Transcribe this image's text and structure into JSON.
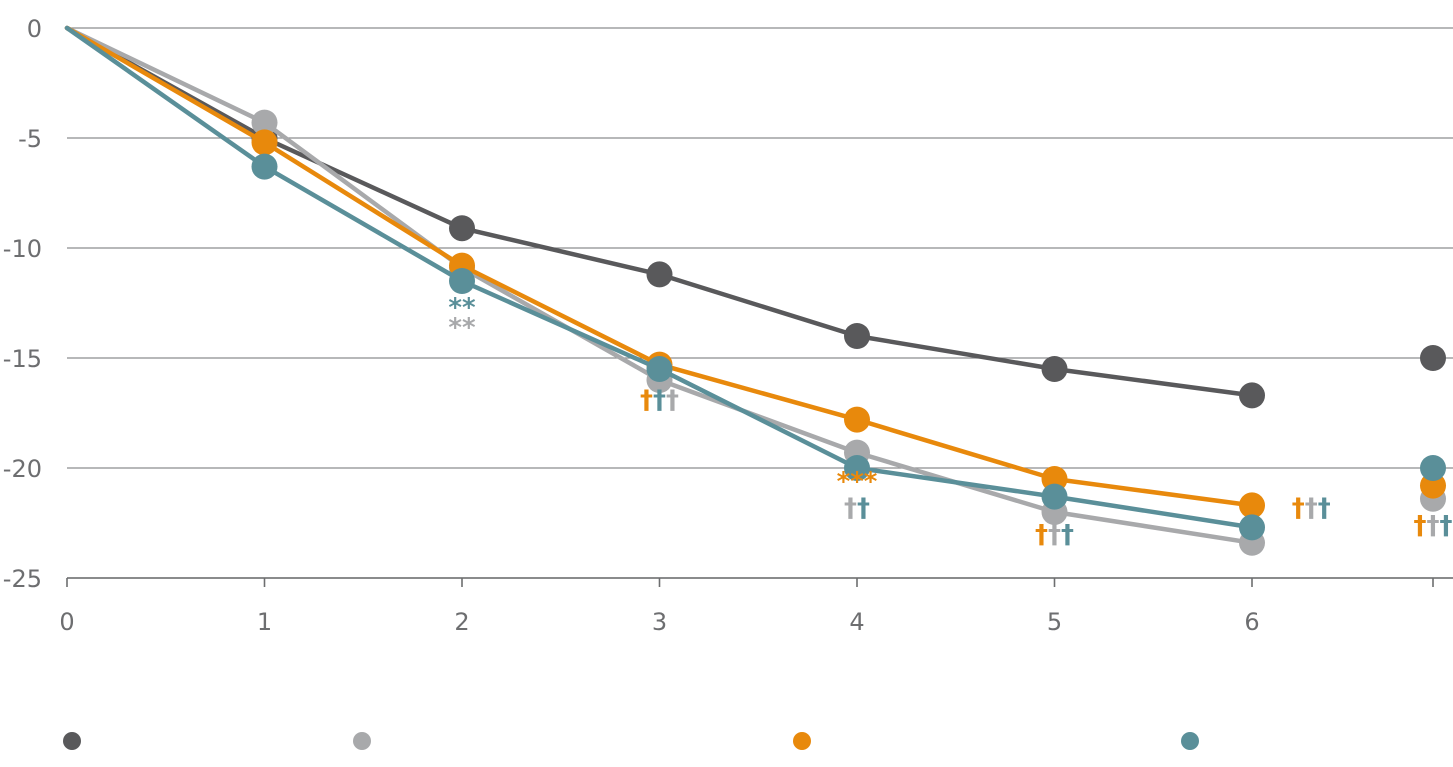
{
  "chart_data": {
    "type": "line",
    "x": [
      0,
      1,
      2,
      3,
      4,
      5,
      6
    ],
    "xticks": [
      "0",
      "1",
      "2",
      "3",
      "4",
      "5",
      "6"
    ],
    "ylim": [
      -25,
      0
    ],
    "yticks": [
      "0",
      "-5",
      "-10",
      "-15",
      "-20",
      "-25"
    ],
    "grid": true,
    "legend_position": "bottom",
    "series": [
      {
        "color": "#59595b",
        "values": [
          0,
          -5.0,
          -9.1,
          -11.2,
          -14.0,
          -15.5,
          -16.7
        ],
        "end_value": -15.0
      },
      {
        "color": "#a8a9ab",
        "values": [
          0,
          -4.3,
          -10.9,
          -16.0,
          -19.3,
          -22.0,
          -23.4
        ],
        "end_value": -21.4
      },
      {
        "color": "#e8890c",
        "values": [
          0,
          -5.2,
          -10.8,
          -15.3,
          -17.8,
          -20.5,
          -21.7
        ],
        "end_value": -20.8
      },
      {
        "color": "#5a8f99",
        "values": [
          0,
          -6.3,
          -11.5,
          -15.5,
          -20.0,
          -21.3,
          -22.7
        ],
        "end_value": -20.0
      }
    ],
    "annotations": [
      {
        "x": 2,
        "y": -13.1,
        "parts": [
          {
            "text": "**",
            "color": "#5a8f99"
          }
        ]
      },
      {
        "x": 2,
        "y": -14.0,
        "parts": [
          {
            "text": "**",
            "color": "#a8a9ab"
          }
        ]
      },
      {
        "x": 3,
        "y": -17.3,
        "parts": [
          {
            "text": "†",
            "color": "#e8890c"
          },
          {
            "text": "†",
            "color": "#5a8f99"
          },
          {
            "text": "†",
            "color": "#a8a9ab"
          }
        ]
      },
      {
        "x": 4,
        "y": -21.0,
        "parts": [
          {
            "text": "***",
            "color": "#e8890c"
          }
        ]
      },
      {
        "x": 4,
        "y": -22.2,
        "parts": [
          {
            "text": "†",
            "color": "#a8a9ab"
          },
          {
            "text": "†",
            "color": "#5a8f99"
          }
        ]
      },
      {
        "x": 5,
        "y": -23.4,
        "parts": [
          {
            "text": "†",
            "color": "#e8890c"
          },
          {
            "text": "†",
            "color": "#a8a9ab"
          },
          {
            "text": "†",
            "color": "#5a8f99"
          }
        ]
      },
      {
        "x": 6.3,
        "y": -22.2,
        "parts": [
          {
            "text": "†",
            "color": "#e8890c"
          },
          {
            "text": "†",
            "color": "#a8a9ab"
          },
          {
            "text": "†",
            "color": "#5a8f99"
          }
        ]
      },
      {
        "x": "end",
        "y": -23.0,
        "parts": [
          {
            "text": "†",
            "color": "#e8890c"
          },
          {
            "text": "†",
            "color": "#a8a9ab"
          },
          {
            "text": "†",
            "color": "#5a8f99"
          }
        ]
      }
    ]
  },
  "legend": {
    "items": [
      {
        "color": "#59595b",
        "icon": "dot-icon"
      },
      {
        "color": "#a8a9ab",
        "icon": "dot-icon"
      },
      {
        "color": "#e8890c",
        "icon": "dot-icon"
      },
      {
        "color": "#5a8f99",
        "icon": "dot-icon"
      }
    ]
  }
}
